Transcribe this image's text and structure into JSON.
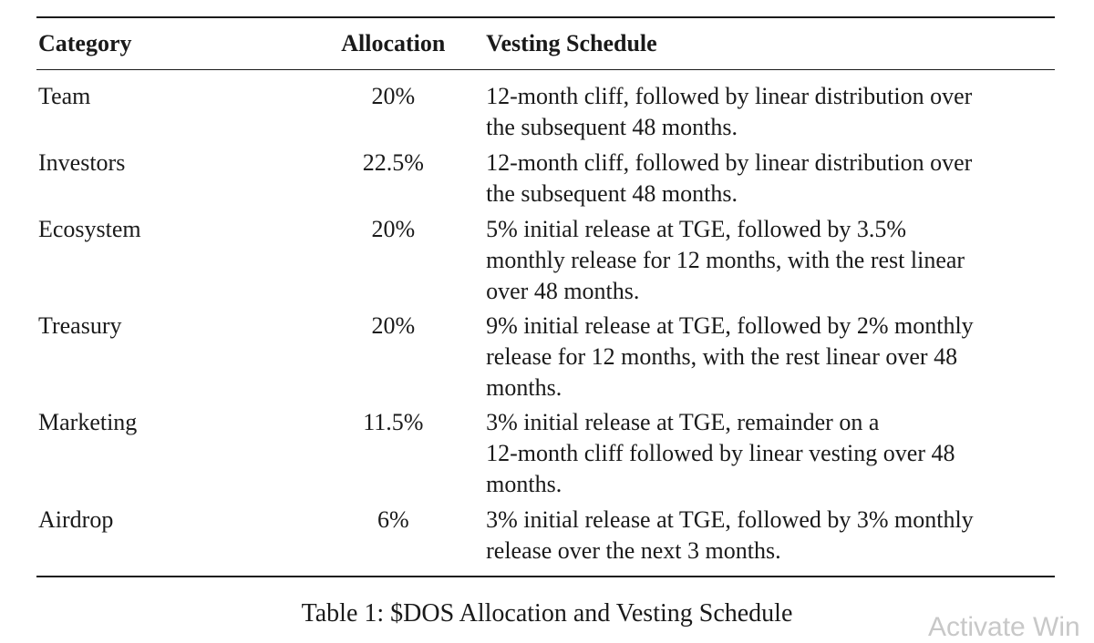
{
  "table": {
    "headers": [
      "Category",
      "Allocation",
      "Vesting Schedule"
    ],
    "rows": [
      {
        "category": "Team",
        "allocation": "20%",
        "lines": [
          "12-month cliff, followed by linear distribution over",
          "the subsequent 48 months."
        ]
      },
      {
        "category": "Investors",
        "allocation": "22.5%",
        "lines": [
          "12-month cliff, followed by linear distribution over",
          "the subsequent 48 months."
        ]
      },
      {
        "category": "Ecosystem",
        "allocation": "20%",
        "lines": [
          "5% initial release at TGE, followed by 3.5%",
          "monthly release for 12 months, with the rest linear",
          "over 48 months."
        ]
      },
      {
        "category": "Treasury",
        "allocation": "20%",
        "lines": [
          "9% initial release at TGE, followed by 2% monthly",
          "release for 12 months, with the rest linear over 48",
          "months."
        ]
      },
      {
        "category": "Marketing",
        "allocation": "11.5%",
        "lines": [
          "3% initial release at TGE, remainder on a",
          "12-month cliff followed by linear vesting over 48",
          "months."
        ]
      },
      {
        "category": "Airdrop",
        "allocation": "6%",
        "lines": [
          "3% initial release at TGE, followed by 3% monthly",
          "release over the next 3 months."
        ]
      }
    ]
  },
  "caption": "Table 1: $DOS Allocation and Vesting Schedule",
  "watermark": "Activate Win"
}
